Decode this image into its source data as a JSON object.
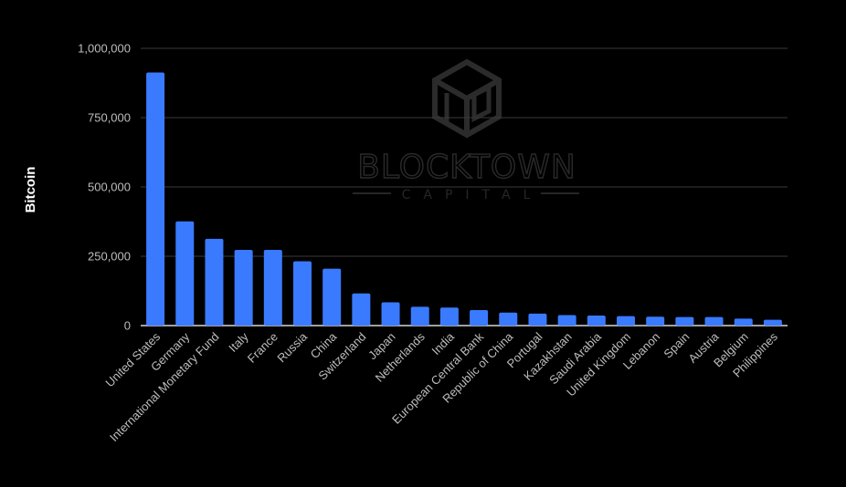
{
  "chart_data": {
    "type": "bar",
    "ylabel": "Bitcoin",
    "ylim": [
      0,
      1000000
    ],
    "yticks": [
      0,
      250000,
      500000,
      750000,
      1000000
    ],
    "ytick_labels": [
      "0",
      "250,000",
      "500,000",
      "750,000",
      "1,000,000"
    ],
    "categories": [
      "United States",
      "Germany",
      "International Monetary Fund",
      "Italy",
      "France",
      "Russia",
      "China",
      "Switzerland",
      "Japan",
      "Netherlands",
      "India",
      "European Central Bank",
      "Republic of China",
      "Portugal",
      "Kazakhstan",
      "Saudi Arabia",
      "United Kingdom",
      "Lebanon",
      "Spain",
      "Austria",
      "Belgium",
      "Philippines"
    ],
    "values": [
      913000,
      376000,
      313000,
      273000,
      273000,
      232000,
      205000,
      116000,
      84000,
      68000,
      65000,
      56000,
      47000,
      43000,
      38000,
      36000,
      34000,
      32000,
      31000,
      31000,
      25000,
      21000
    ],
    "bar_color": "#3a7afe",
    "grid": true,
    "legend": "none"
  },
  "watermark": {
    "brand": "BLOCKTOWN",
    "sub": "CAPITAL"
  }
}
